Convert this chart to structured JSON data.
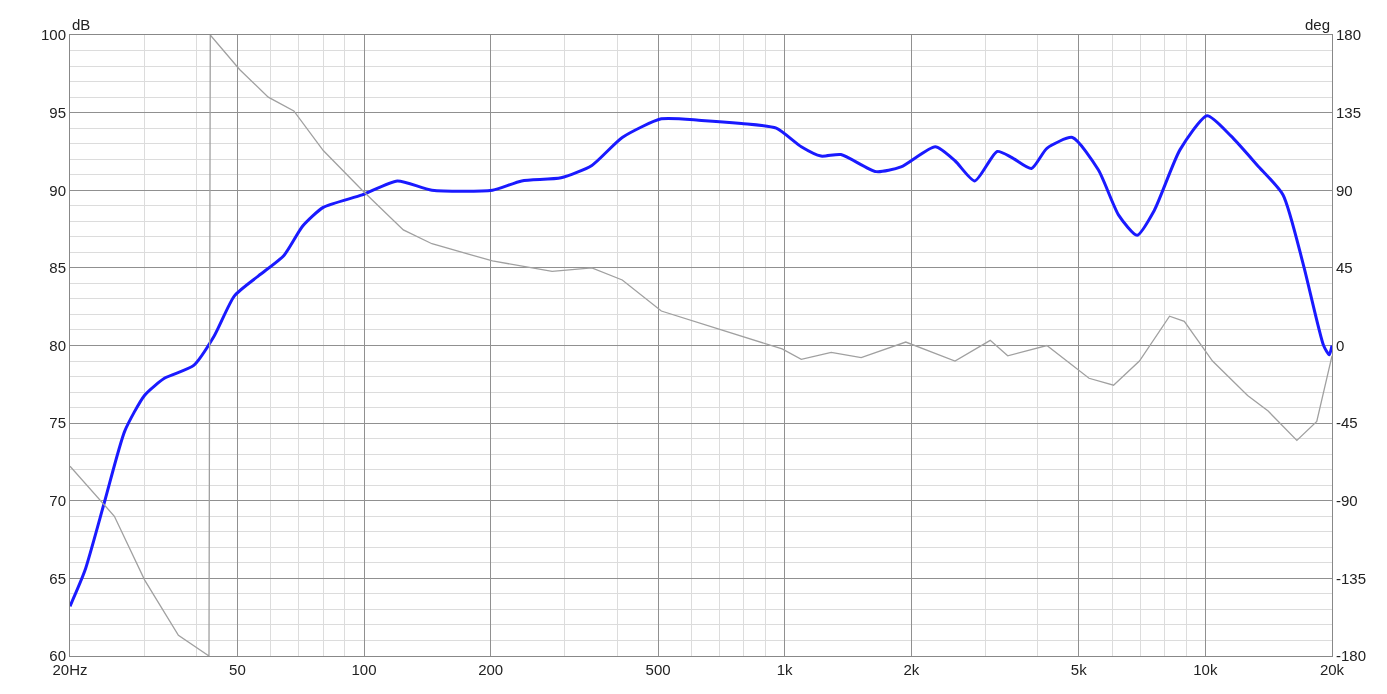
{
  "chart_data": {
    "type": "line",
    "ylabel": "dB",
    "y2label": "deg",
    "log": "x",
    "xlim": [
      20,
      20000
    ],
    "xticks": [
      {
        "value": 20,
        "label": "20Hz"
      },
      50,
      100,
      200,
      500,
      {
        "value": 1000,
        "label": "1k"
      },
      {
        "value": 2000,
        "label": "2k"
      },
      {
        "value": 5000,
        "label": "5k"
      },
      {
        "value": 10000,
        "label": "10k"
      },
      {
        "value": 20000,
        "label": "20k"
      }
    ],
    "ylim": [
      60,
      100
    ],
    "yticks": [
      60,
      65,
      70,
      75,
      80,
      85,
      90,
      95,
      100
    ],
    "y2lim": [
      -180,
      180
    ],
    "y2ticks": [
      -180,
      -135,
      -90,
      -45,
      0,
      45,
      90,
      135,
      180
    ],
    "grid": true,
    "marker": "none",
    "line_style": "solid",
    "series": [
      {
        "color": "#1a1aff",
        "x": [
          20,
          21.7,
          24.2,
          27.0,
          30.1,
          33.6,
          39.3,
          44.0,
          49.2,
          56.2,
          64.5,
          71.5,
          80,
          99,
          120,
          145,
          202,
          237,
          294,
          348,
          411,
          509,
          634,
          789,
          955,
          1095,
          1220,
          1360,
          1650,
          1890,
          2280,
          2540,
          2830,
          3200,
          3470,
          3860,
          4200,
          4830,
          5570,
          6220,
          6880,
          7560,
          8700,
          10100,
          11500,
          13300,
          15300,
          17100,
          19100,
          19700,
          20000
        ],
        "values": [
          63.2,
          65.5,
          70.0,
          74.5,
          76.8,
          77.9,
          78.7,
          80.6,
          83.2,
          84.5,
          85.8,
          87.7,
          88.9,
          89.7,
          90.6,
          90.0,
          90.0,
          90.6,
          90.8,
          91.6,
          93.4,
          94.6,
          94.5,
          94.3,
          94.0,
          92.8,
          92.2,
          92.3,
          91.2,
          91.5,
          92.8,
          91.9,
          90.6,
          92.5,
          92.1,
          91.4,
          92.7,
          93.4,
          91.3,
          88.4,
          87.1,
          88.7,
          92.6,
          94.8,
          93.5,
          91.6,
          89.7,
          85.2,
          80.0,
          79.4,
          80.0
        ]
      },
      {
        "color": "#a0a0a0",
        "axis": "y2",
        "x": [
          20,
          25.5,
          30.1,
          36.2,
          42.8,
          43.1,
          50.6,
          59.2,
          68.1,
          80,
          99,
          124,
          145,
          202,
          280,
          348,
          411,
          509,
          707,
          986,
          1095,
          1290,
          1520,
          1940,
          2540,
          3080,
          3390,
          4200,
          5290,
          6050,
          6970,
          8220,
          8910,
          10400,
          12600,
          14100,
          16500,
          18400,
          20000
        ],
        "values": [
          -70,
          -99,
          -136,
          -168,
          -180,
          180,
          160,
          144,
          136,
          113,
          90,
          67,
          59,
          49,
          43,
          45,
          38,
          20,
          9,
          -2,
          -8,
          -4,
          -7,
          2,
          -9,
          3,
          -6,
          0,
          -19,
          -23,
          -9,
          17,
          14,
          -9,
          -29,
          -38,
          -55,
          -44,
          -6
        ]
      }
    ]
  }
}
